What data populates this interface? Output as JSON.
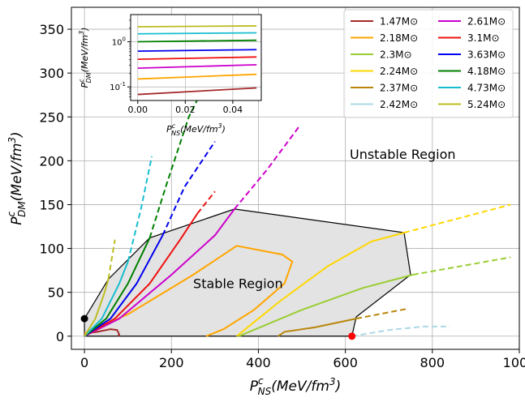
{
  "chart_data": [
    {
      "type": "line",
      "xlabel": "P_NS^c (MeV/fm^3)",
      "ylabel": "P_DM^c (MeV/fm^3)",
      "xlim": [
        -30,
        1000
      ],
      "ylim": [
        -15,
        375
      ],
      "x_ticks": [
        0,
        200,
        400,
        600,
        800,
        1000
      ],
      "y_ticks": [
        0,
        50,
        100,
        150,
        200,
        250,
        300,
        350
      ],
      "x_tick_labels": [
        "0",
        "200",
        "400",
        "600",
        "800",
        "1000"
      ],
      "y_tick_labels": [
        "0",
        "50",
        "100",
        "150",
        "200",
        "250",
        "300",
        "350"
      ],
      "grid": true,
      "legend_position": "top-right",
      "annotations": [
        {
          "text": "Unstable Region",
          "x": 610,
          "y": 202
        },
        {
          "text": "Stable Region",
          "x": 250,
          "y": 55
        }
      ],
      "stable_region_boundary": [
        [
          0,
          5
        ],
        [
          0,
          20
        ],
        [
          55,
          65
        ],
        [
          150,
          112
        ],
        [
          345,
          145
        ],
        [
          735,
          118
        ],
        [
          750,
          70
        ],
        [
          625,
          22
        ],
        [
          615,
          0
        ],
        [
          0,
          0
        ]
      ],
      "markers": [
        {
          "color": "#000000",
          "x": 0,
          "y": 20
        },
        {
          "color": "#ff0000",
          "x": 615,
          "y": 0
        }
      ],
      "series": [
        {
          "name": "1.47M⊙",
          "color": "#a52a2a",
          "solid": [
            [
              0,
              3
            ],
            [
              30,
              5
            ],
            [
              60,
              8
            ],
            [
              75,
              7
            ],
            [
              80,
              2
            ],
            [
              77,
              0
            ]
          ],
          "dashed": []
        },
        {
          "name": "2.18M⊙",
          "color": "#ffa500",
          "solid": [
            [
              0,
              3
            ],
            [
              100,
              25
            ],
            [
              250,
              70
            ],
            [
              350,
              103
            ],
            [
              455,
              93
            ],
            [
              478,
              85
            ],
            [
              460,
              60
            ],
            [
              390,
              30
            ],
            [
              320,
              8
            ],
            [
              280,
              0
            ]
          ],
          "dashed": []
        },
        {
          "name": "2.3M⊙",
          "color": "#9acd32",
          "solid": [
            [
              355,
              0
            ],
            [
              500,
              30
            ],
            [
              640,
              55
            ],
            [
              755,
              70
            ]
          ],
          "dashed": [
            [
              755,
              70
            ],
            [
              980,
              90
            ]
          ]
        },
        {
          "name": "2.24M⊙",
          "color": "#ffd700",
          "solid": [
            [
              350,
              0
            ],
            [
              450,
              40
            ],
            [
              560,
              80
            ],
            [
              660,
              108
            ],
            [
              735,
              118
            ]
          ],
          "dashed": [
            [
              735,
              118
            ],
            [
              980,
              150
            ]
          ]
        },
        {
          "name": "2.37M⊙",
          "color": "#b8860b",
          "solid": [
            [
              445,
              0
            ],
            [
              460,
              5
            ],
            [
              530,
              10
            ],
            [
              625,
              20
            ]
          ],
          "dashed": [
            [
              625,
              20
            ],
            [
              740,
              31
            ]
          ]
        },
        {
          "name": "2.42M⊙",
          "color": "#add8e6",
          "solid": [],
          "dashed": [
            [
              615,
              0
            ],
            [
              700,
              7
            ],
            [
              780,
              11
            ],
            [
              840,
              11
            ]
          ]
        },
        {
          "name": "2.61M⊙",
          "color": "#cc00cc",
          "solid": [
            [
              0,
              0
            ],
            [
              80,
              20
            ],
            [
              200,
              70
            ],
            [
              300,
              115
            ],
            [
              345,
              145
            ]
          ],
          "dashed": [
            [
              345,
              145
            ],
            [
              420,
              190
            ],
            [
              495,
              240
            ]
          ]
        },
        {
          "name": "3.1M⊙",
          "color": "#ee1111",
          "solid": [
            [
              0,
              0
            ],
            [
              70,
              20
            ],
            [
              150,
              60
            ],
            [
              220,
              110
            ],
            [
              260,
              140
            ]
          ],
          "dashed": [
            [
              260,
              140
            ],
            [
              300,
              165
            ]
          ]
        },
        {
          "name": "3.63M⊙",
          "color": "#0000ee",
          "solid": [
            [
              0,
              0
            ],
            [
              60,
              20
            ],
            [
              120,
              60
            ],
            [
              180,
              115
            ]
          ],
          "dashed": [
            [
              180,
              115
            ],
            [
              230,
              170
            ],
            [
              300,
              222
            ]
          ]
        },
        {
          "name": "4.18M⊙",
          "color": "#008000",
          "solid": [
            [
              0,
              0
            ],
            [
              50,
              20
            ],
            [
              100,
              60
            ],
            [
              150,
              112
            ]
          ],
          "dashed": [
            [
              150,
              112
            ],
            [
              190,
              175
            ],
            [
              240,
              250
            ],
            [
              260,
              270
            ]
          ]
        },
        {
          "name": "4.73M⊙",
          "color": "#17becf",
          "solid": [
            [
              0,
              0
            ],
            [
              40,
              20
            ],
            [
              80,
              60
            ],
            [
              100,
              85
            ]
          ],
          "dashed": [
            [
              100,
              85
            ],
            [
              130,
              145
            ],
            [
              155,
              205
            ]
          ]
        },
        {
          "name": "5.24M⊙",
          "color": "#bcbd22",
          "solid": [
            [
              0,
              0
            ],
            [
              25,
              20
            ],
            [
              45,
              48
            ],
            [
              55,
              65
            ]
          ],
          "dashed": [
            [
              55,
              65
            ],
            [
              70,
              110
            ]
          ]
        }
      ]
    },
    {
      "type": "line",
      "xlabel": "P_NS^c (MeV/fm^3)",
      "ylabel": "P_DM^c (MeV/fm^3)",
      "xlim": [
        -0.003,
        0.052
      ],
      "ylim_log": [
        0.05,
        4
      ],
      "y_scale": "log",
      "x_ticks": [
        0.0,
        0.02,
        0.04
      ],
      "x_tick_labels": [
        "0.00",
        "0.02",
        "0.04"
      ],
      "y_ticks": [
        0.1,
        1
      ],
      "y_tick_labels": [
        "10^-1",
        "10^0"
      ],
      "grid": true,
      "series": [
        {
          "color": "#a52a2a",
          "y_start": 0.068,
          "y_end": 0.095
        },
        {
          "color": "#ffa500",
          "y_start": 0.15,
          "y_end": 0.19
        },
        {
          "color": "#cc00cc",
          "y_start": 0.26,
          "y_end": 0.31
        },
        {
          "color": "#ee1111",
          "y_start": 0.41,
          "y_end": 0.46
        },
        {
          "color": "#0000ee",
          "y_start": 0.62,
          "y_end": 0.67
        },
        {
          "color": "#008000",
          "y_start": 1.0,
          "y_end": 1.08
        },
        {
          "color": "#17becf",
          "y_start": 1.5,
          "y_end": 1.58
        },
        {
          "color": "#bcbd22",
          "y_start": 2.15,
          "y_end": 2.25
        }
      ]
    }
  ]
}
